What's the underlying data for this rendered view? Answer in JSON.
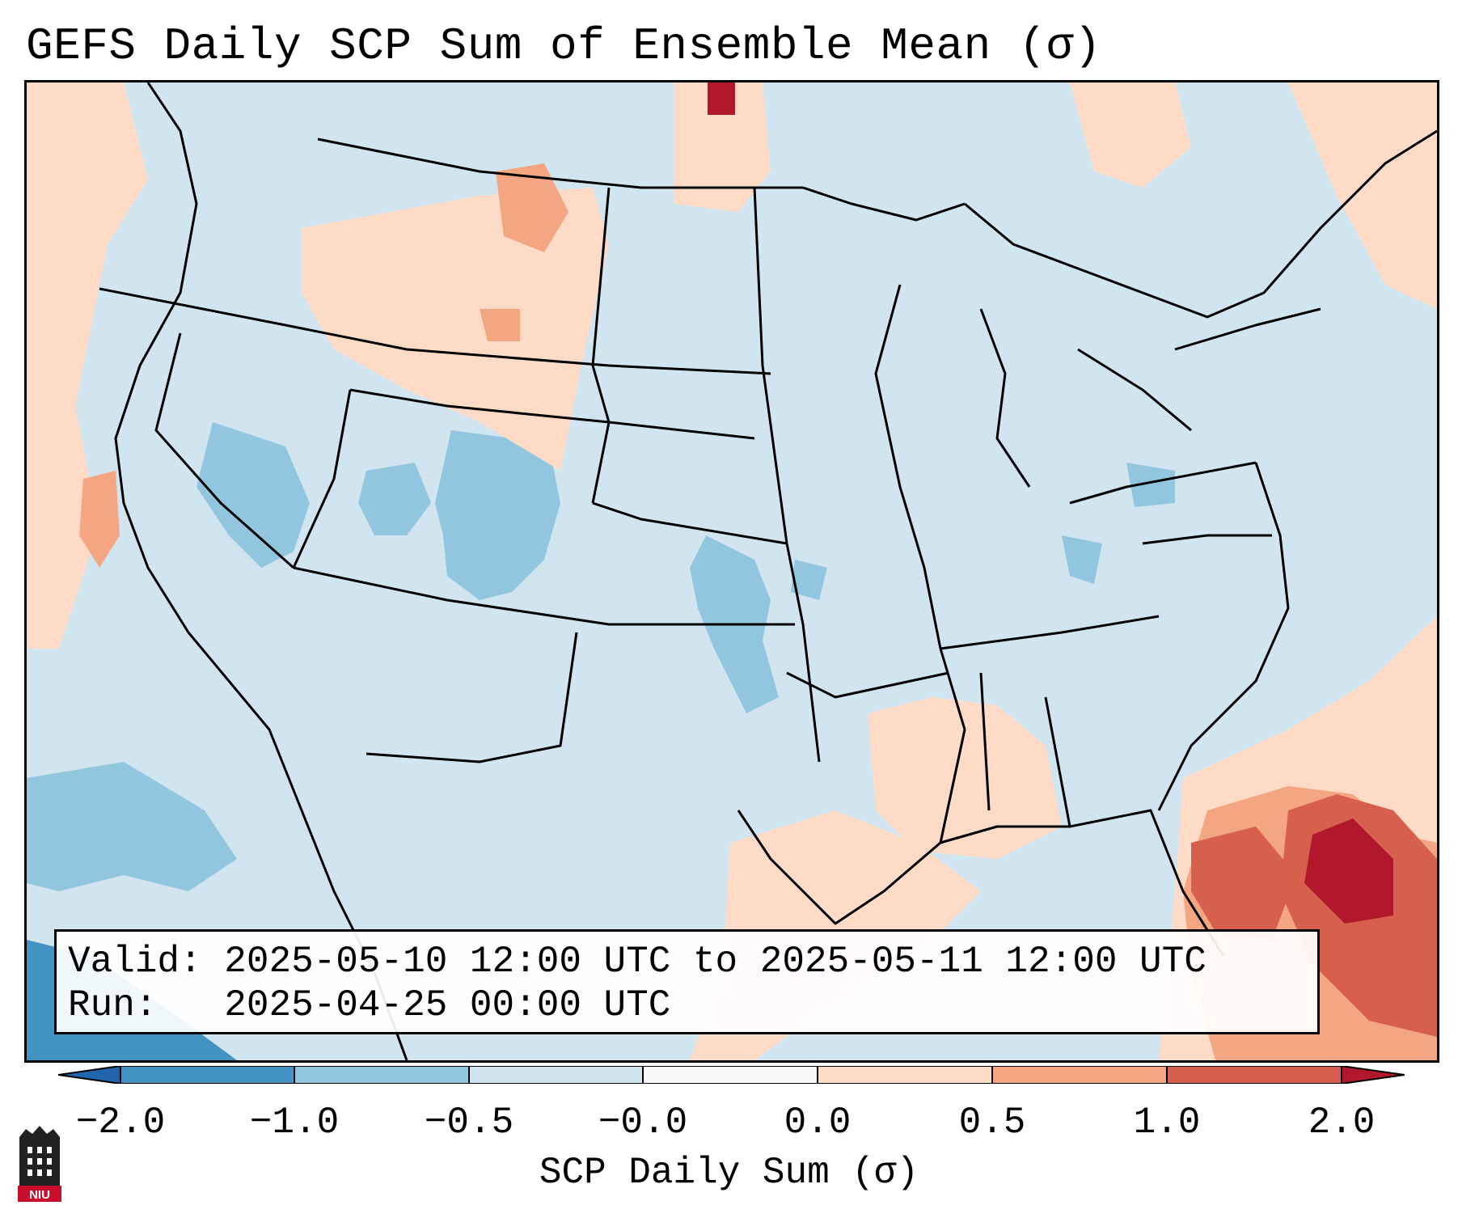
{
  "title": "GEFS Daily SCP Sum of Ensemble Mean (σ)",
  "info": {
    "valid_label": "Valid:",
    "valid_value": "2025-05-10 12:00 UTC to 2025-05-11 12:00 UTC",
    "run_label": "Run:",
    "run_value": "2025-04-25 00:00 UTC"
  },
  "colorbar": {
    "label": "SCP Daily Sum (σ)",
    "ticks": [
      "−2.0",
      "−1.0",
      "−0.5",
      "−0.0",
      "0.0",
      "0.5",
      "1.0",
      "2.0"
    ],
    "colors": [
      "#4393c3",
      "#92c5de",
      "#d1e5f0",
      "#f7f7f7",
      "#fddbc7",
      "#f4a582",
      "#d6604d"
    ],
    "under_color": "#2166ac",
    "over_color": "#b2182b"
  },
  "map": {
    "region": "Contiguous United States",
    "field": "SCP daily sum anomaly (σ)",
    "background_color": "#d1e5f0"
  },
  "logo": {
    "text": "NIU"
  }
}
